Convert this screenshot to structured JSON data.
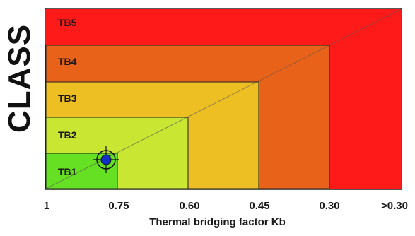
{
  "y_axis_label": "CLASS",
  "x_axis_label": "Thermal bridging factor Kb",
  "x_ticks": [
    "1",
    "0.75",
    "0.60",
    "0.45",
    "0.30",
    ">0.30"
  ],
  "classes": [
    {
      "label": "TB5",
      "color": "#ff1a1a"
    },
    {
      "label": "TB4",
      "color": "#e8621a"
    },
    {
      "label": "TB3",
      "color": "#eebf22"
    },
    {
      "label": "TB2",
      "color": "#c8e632"
    },
    {
      "label": "TB1",
      "color": "#66e022"
    }
  ],
  "marker": {
    "icon": "crosshair-target-icon",
    "color": "#1030c8"
  }
}
